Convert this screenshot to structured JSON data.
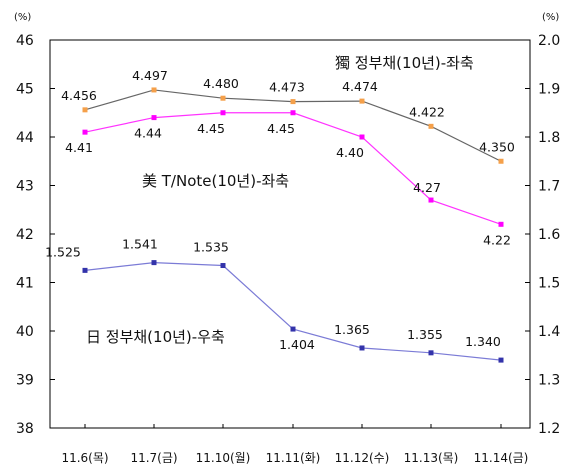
{
  "chart_data": {
    "type": "line",
    "categories": [
      "11.6(목)",
      "11.7(금)",
      "11.10(월)",
      "11.11(화)",
      "11.12(수)",
      "11.13(목)",
      "11.14(금)"
    ],
    "left_axis": {
      "unit_label": "(%)",
      "ylim": [
        38,
        46
      ],
      "ticks": [
        "38",
        "39",
        "40",
        "41",
        "42",
        "43",
        "44",
        "45",
        "46"
      ]
    },
    "right_axis": {
      "unit_label": "(%)",
      "ylim": [
        1.2,
        2.0
      ],
      "ticks": [
        "1.2",
        "1.3",
        "1.4",
        "1.5",
        "1.6",
        "1.7",
        "1.8",
        "1.9",
        "2.0"
      ]
    },
    "grid": false,
    "series": [
      {
        "name": "獨 정부채(10년)-좌축",
        "axis": "left",
        "color": "#666666",
        "marker_color": "#f5a04a",
        "values": [
          4.456,
          4.497,
          4.48,
          4.473,
          4.474,
          4.422,
          4.35
        ],
        "labels": [
          "4.456",
          "4.497",
          "4.480",
          "4.473",
          "4.474",
          "4.422",
          "4.350"
        ]
      },
      {
        "name": "美 T/Note(10년)-좌축",
        "axis": "left",
        "color": "#ff33ff",
        "marker_color": "#ff00ff",
        "values": [
          4.41,
          4.44,
          4.45,
          4.45,
          4.4,
          4.27,
          4.22
        ],
        "labels": [
          "4.41",
          "4.44",
          "4.45",
          "4.45",
          "4.40",
          "4.27",
          "4.22"
        ]
      },
      {
        "name": "日 정부채(10년)-우축",
        "axis": "right",
        "color": "#7b7bd6",
        "marker_color": "#3333aa",
        "values": [
          1.525,
          1.541,
          1.535,
          1.404,
          1.365,
          1.355,
          1.34
        ],
        "labels": [
          "1.525",
          "1.541",
          "1.535",
          "1.404",
          "1.365",
          "1.355",
          "1.340"
        ]
      }
    ]
  }
}
